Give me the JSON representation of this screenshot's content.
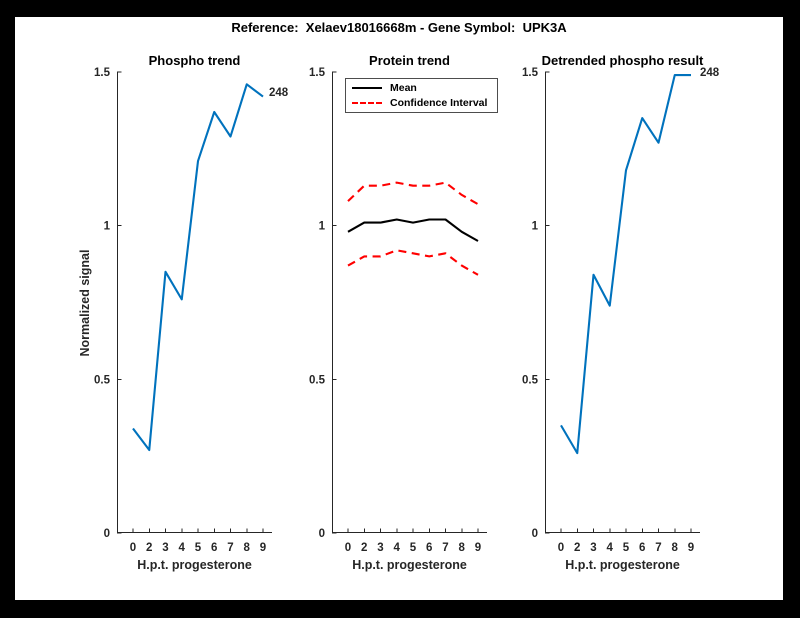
{
  "figure": {
    "title": "Reference:  Xelaev18016668m - Gene Symbol:  UPK3A",
    "frame_color": "#000000",
    "canvas_color": "#ffffff"
  },
  "colors": {
    "line_blue": "#0072BD",
    "ci_red": "#FF0000",
    "mean_black": "#000000",
    "axis_gray": "#262626"
  },
  "chart_data": [
    {
      "type": "line",
      "title": "Phospho trend",
      "xlabel": "H.p.t. progesterone",
      "ylabel": "Normalized signal",
      "categories": [
        "0",
        "2",
        "3",
        "4",
        "5",
        "6",
        "7",
        "8",
        "9"
      ],
      "ylim": [
        0,
        1.5
      ],
      "yticks": [
        0,
        0.5,
        1,
        1.5
      ],
      "ytick_labels": [
        "0",
        "0.5",
        "1",
        "1.5"
      ],
      "grid": false,
      "end_label": "248",
      "series": [
        {
          "name": "phospho-signal",
          "color": "#0072BD",
          "style": "solid",
          "values": [
            0.34,
            0.27,
            0.85,
            0.76,
            1.21,
            1.37,
            1.29,
            1.46,
            1.42
          ]
        }
      ]
    },
    {
      "type": "line",
      "title": "Protein trend",
      "xlabel": "H.p.t. progesterone",
      "ylabel": "",
      "categories": [
        "0",
        "2",
        "3",
        "4",
        "5",
        "6",
        "7",
        "8",
        "9"
      ],
      "ylim": [
        0,
        1.5
      ],
      "yticks": [
        0,
        0.5,
        1,
        1.5
      ],
      "ytick_labels": [
        "0",
        "0.5",
        "1",
        "1.5"
      ],
      "grid": false,
      "legend": {
        "position": "northwest",
        "entries": [
          {
            "label": "Mean",
            "color": "#000000",
            "style": "solid"
          },
          {
            "label": "Confidence Interval",
            "color": "#FF0000",
            "style": "dashed"
          }
        ]
      },
      "series": [
        {
          "name": "ci-upper",
          "color": "#FF0000",
          "style": "dashed",
          "values": [
            1.08,
            1.13,
            1.13,
            1.14,
            1.13,
            1.13,
            1.14,
            1.1,
            1.07
          ]
        },
        {
          "name": "ci-lower",
          "color": "#FF0000",
          "style": "dashed",
          "values": [
            0.87,
            0.9,
            0.9,
            0.92,
            0.91,
            0.9,
            0.91,
            0.87,
            0.84
          ]
        },
        {
          "name": "mean",
          "color": "#000000",
          "style": "solid",
          "values": [
            0.98,
            1.01,
            1.01,
            1.02,
            1.01,
            1.02,
            1.02,
            0.98,
            0.95
          ]
        }
      ]
    },
    {
      "type": "line",
      "title": "Detrended phospho result",
      "xlabel": "H.p.t. progesterone",
      "ylabel": "",
      "categories": [
        "0",
        "2",
        "3",
        "4",
        "5",
        "6",
        "7",
        "8",
        "9"
      ],
      "ylim": [
        0,
        1.5
      ],
      "yticks": [
        0,
        0.5,
        1,
        1.5
      ],
      "ytick_labels": [
        "0",
        "0.5",
        "1",
        "1.5"
      ],
      "grid": false,
      "end_label": "248",
      "series": [
        {
          "name": "detrended-phospho",
          "color": "#0072BD",
          "style": "solid",
          "values": [
            0.35,
            0.26,
            0.84,
            0.74,
            1.18,
            1.35,
            1.27,
            1.49,
            1.49
          ]
        }
      ]
    }
  ]
}
